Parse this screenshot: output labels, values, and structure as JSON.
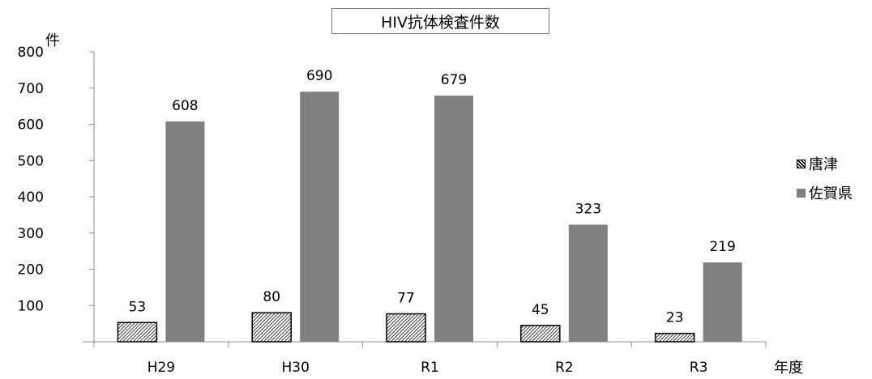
{
  "chart_data": {
    "type": "bar",
    "title": "HIV抗体検査件数",
    "ylabel": "件",
    "xlabel": "年度",
    "categories": [
      "H29",
      "H30",
      "R1",
      "R2",
      "R3"
    ],
    "series": [
      {
        "name": "唐津",
        "values": [
          53,
          80,
          77,
          45,
          23
        ],
        "color": "#000000",
        "pattern": "diagonal-hatch"
      },
      {
        "name": "佐賀県",
        "values": [
          608,
          690,
          679,
          323,
          219
        ],
        "color": "#808080",
        "pattern": "solid"
      }
    ],
    "ylim": [
      0,
      800
    ],
    "yticks": [
      "100",
      "200",
      "300",
      "400",
      "500",
      "600",
      "700",
      "800"
    ],
    "ytick_values": [
      100,
      200,
      300,
      400,
      500,
      600,
      700,
      800
    ],
    "grid": false,
    "legend_position": "right",
    "data_labels": true
  }
}
